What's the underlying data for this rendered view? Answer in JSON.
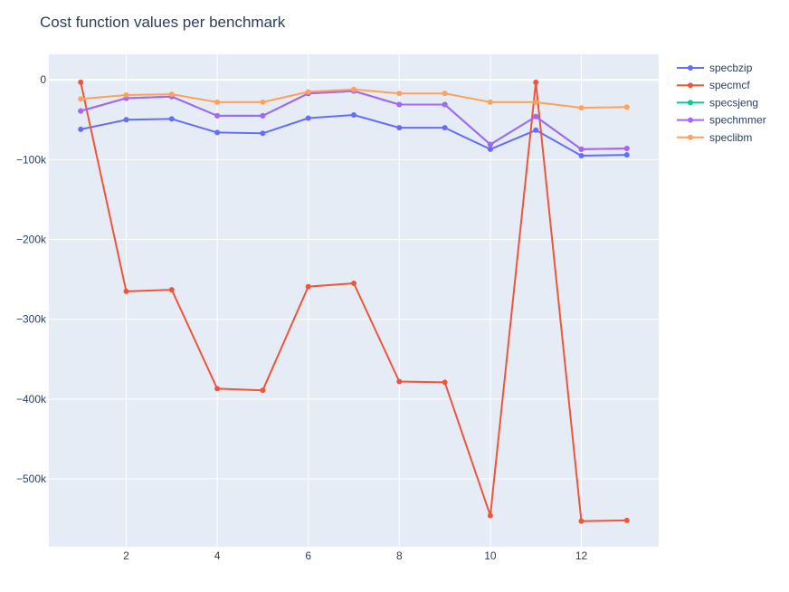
{
  "chart_data": {
    "type": "line",
    "title": "Cost function values per benchmark",
    "xlabel": "",
    "ylabel": "",
    "xlim": [
      0.3,
      13.7
    ],
    "ylim": [
      -585000,
      32000
    ],
    "x_ticks": [
      2,
      4,
      6,
      8,
      10,
      12
    ],
    "x_tick_labels": [
      "2",
      "4",
      "6",
      "8",
      "10",
      "12"
    ],
    "y_ticks": [
      0,
      -100000,
      -200000,
      -300000,
      -400000,
      -500000
    ],
    "y_tick_labels": [
      "0",
      "−100k",
      "−200k",
      "−300k",
      "−400k",
      "−500k"
    ],
    "grid": true,
    "legend_position": "right",
    "x": [
      1,
      2,
      3,
      4,
      5,
      6,
      7,
      8,
      9,
      10,
      11,
      12,
      13
    ],
    "series": [
      {
        "name": "specbzip",
        "color": "#636efa",
        "values": [
          -62000,
          -50000,
          -49000,
          -66000,
          -67000,
          -48000,
          -44000,
          -60000,
          -60000,
          -87000,
          -63000,
          -95000,
          -94000
        ]
      },
      {
        "name": "specmcf",
        "color": "#ef553b",
        "values": [
          -3000,
          -265000,
          -263000,
          -387000,
          -389000,
          -259000,
          -255000,
          -378000,
          -379000,
          -546000,
          -3000,
          -553000,
          -552000
        ]
      },
      {
        "name": "specsjeng",
        "color": "#00cc96",
        "values": [
          -39000,
          -23000,
          -21000,
          -45000,
          -45000,
          -17000,
          -14000,
          -31000,
          -31000,
          -81000,
          -46000,
          -87000,
          -86000
        ]
      },
      {
        "name": "spechmmer",
        "color": "#ab63fa",
        "values": [
          -39000,
          -23000,
          -21000,
          -45000,
          -45000,
          -17000,
          -14000,
          -31000,
          -31000,
          -81000,
          -46000,
          -87000,
          -86000
        ]
      },
      {
        "name": "speclibm",
        "color": "#ffa15a",
        "values": [
          -24000,
          -19000,
          -18000,
          -28000,
          -28000,
          -15000,
          -12000,
          -17000,
          -17000,
          -28000,
          -28000,
          -35000,
          -34000
        ]
      }
    ]
  }
}
